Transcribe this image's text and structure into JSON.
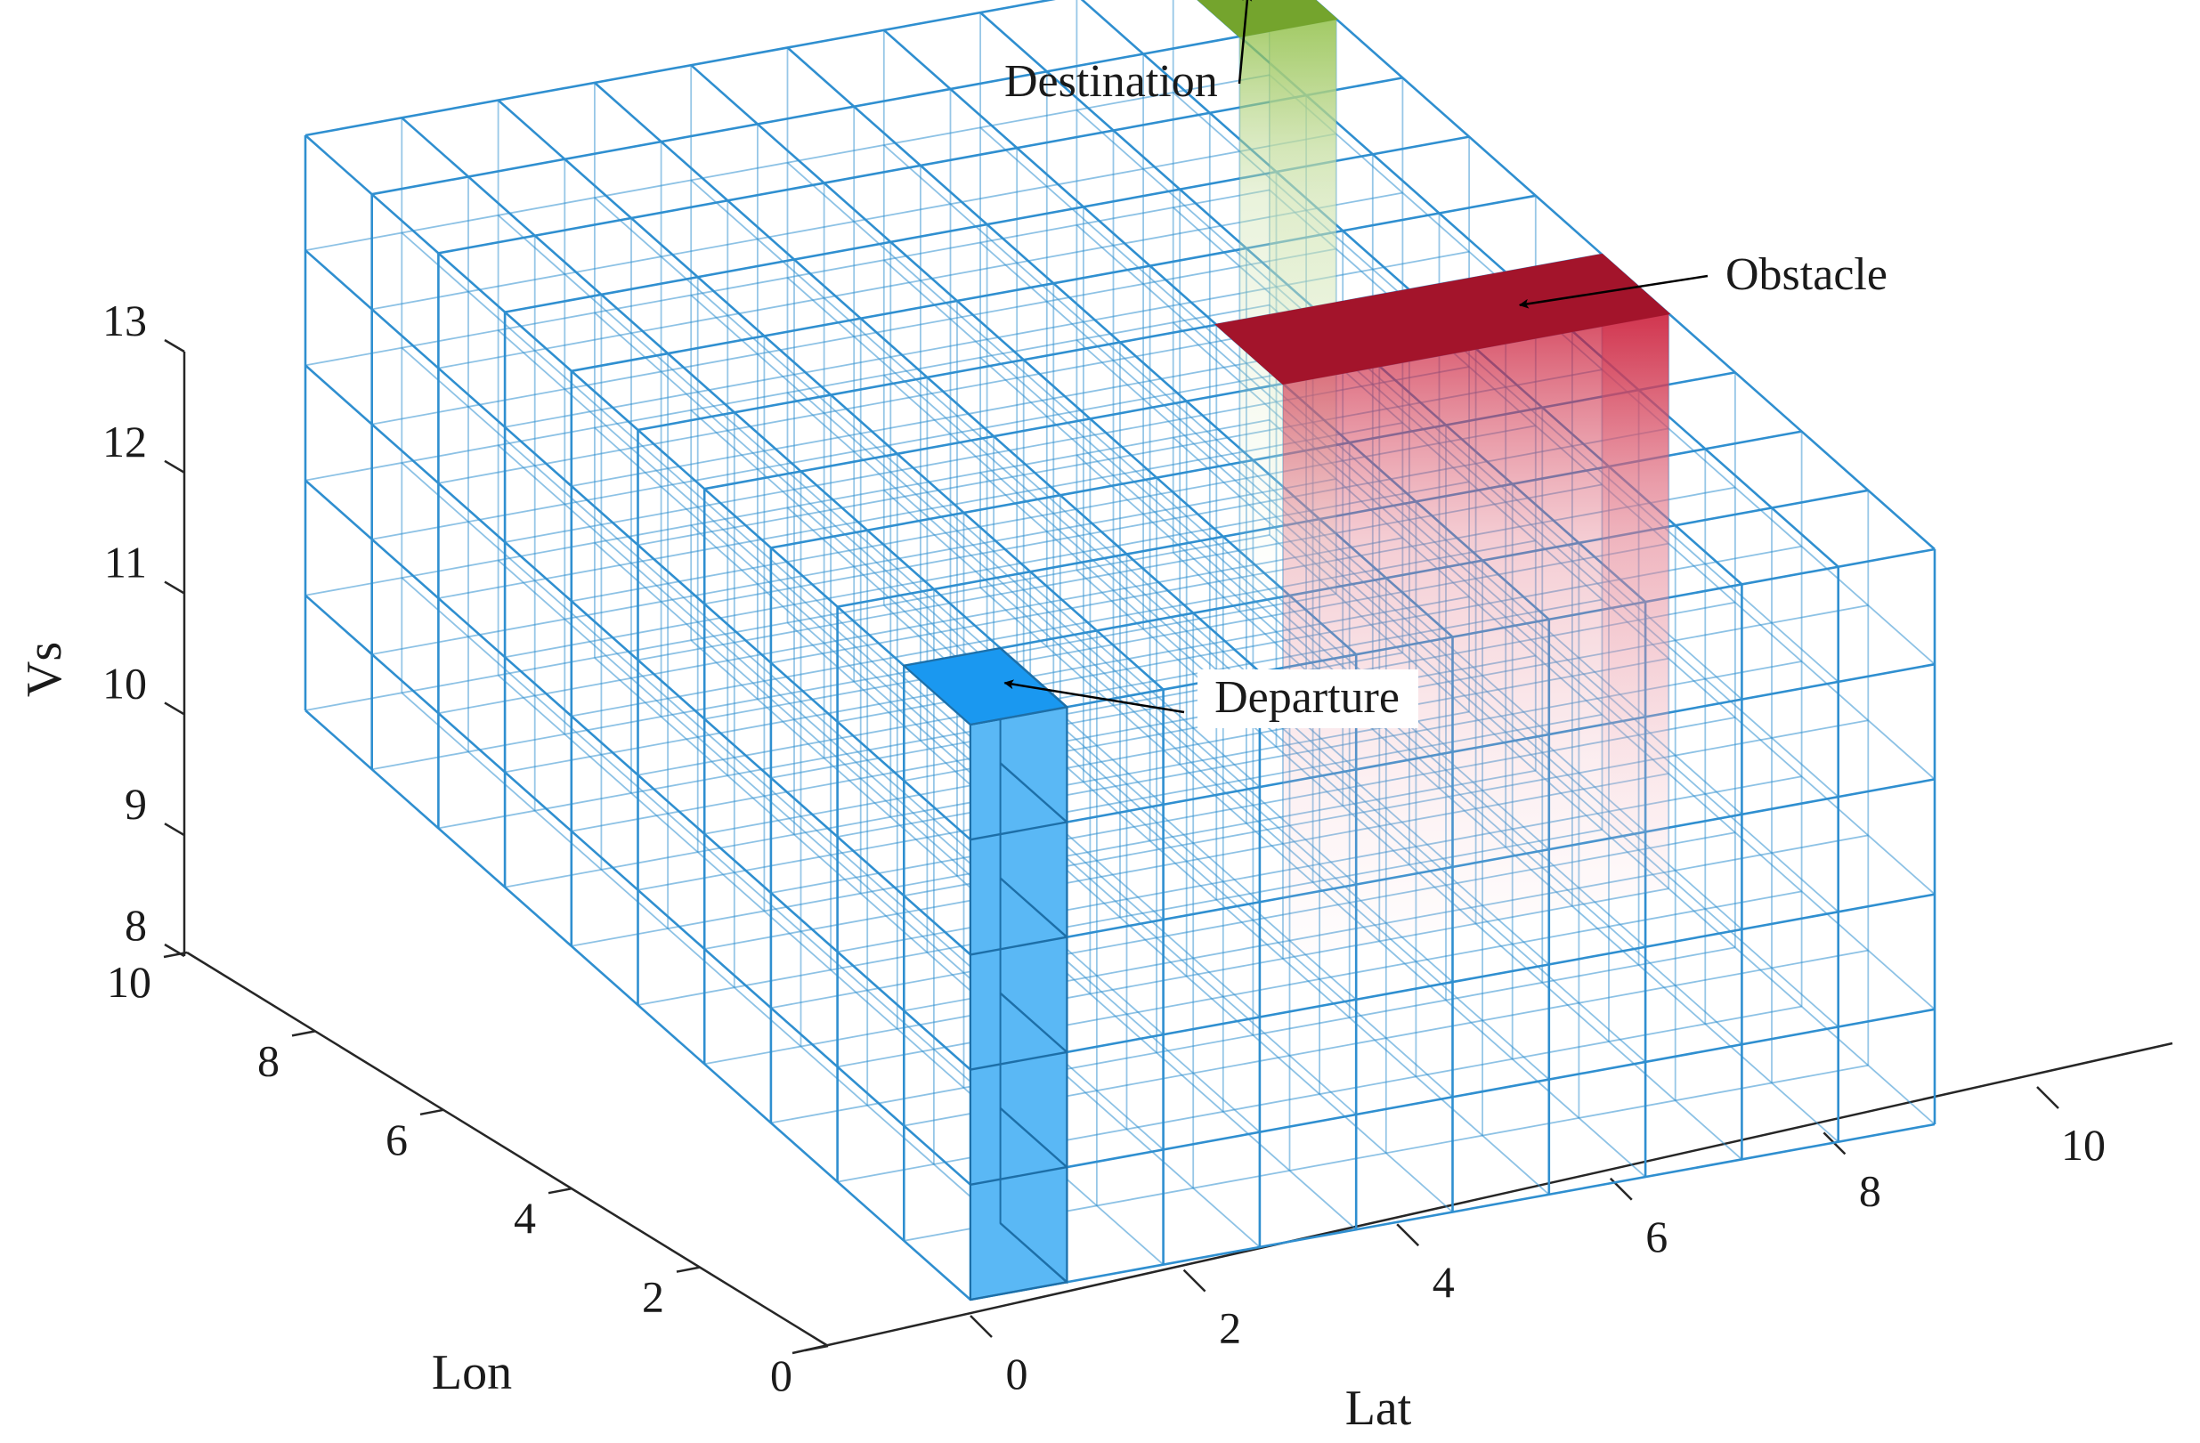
{
  "chart_data": {
    "type": "3d-grid",
    "xlabel": "Lat",
    "ylabel": "Lon",
    "zlabel": "Vs",
    "xlim": [
      0,
      10
    ],
    "ylim": [
      0,
      10
    ],
    "zlim": [
      8,
      13
    ],
    "x_ticks": [
      0,
      2,
      4,
      6,
      8,
      10
    ],
    "y_ticks": [
      0,
      2,
      4,
      6,
      8,
      10
    ],
    "z_ticks": [
      8,
      9,
      10,
      11,
      12,
      13
    ],
    "grid_cells": {
      "x_count": 10,
      "y_count": 10,
      "z_count": 5,
      "cell_size": 1
    },
    "grid_color": "#2f8fd0",
    "cells": [
      {
        "name": "Departure",
        "x": [
          0,
          1
        ],
        "y": [
          0,
          1
        ],
        "z": [
          8,
          13
        ],
        "color": "#5ab8f5",
        "top_color": "#1a98f0"
      },
      {
        "name": "Obstacle",
        "x": [
          6,
          10
        ],
        "y": [
          4,
          5
        ],
        "z": [
          8,
          13
        ],
        "color": "#c8102e",
        "top_color": "#a3142b"
      },
      {
        "name": "Destination",
        "x": [
          9,
          10
        ],
        "y": [
          9,
          10
        ],
        "z": [
          8,
          13
        ],
        "color": "#8fbf45",
        "top_color": "#74a42d"
      }
    ],
    "annotations": [
      {
        "text": "Departure",
        "target": "Departure"
      },
      {
        "text": "Obstacle",
        "target": "Obstacle"
      },
      {
        "text": "Destination",
        "target": "Destination"
      }
    ]
  }
}
